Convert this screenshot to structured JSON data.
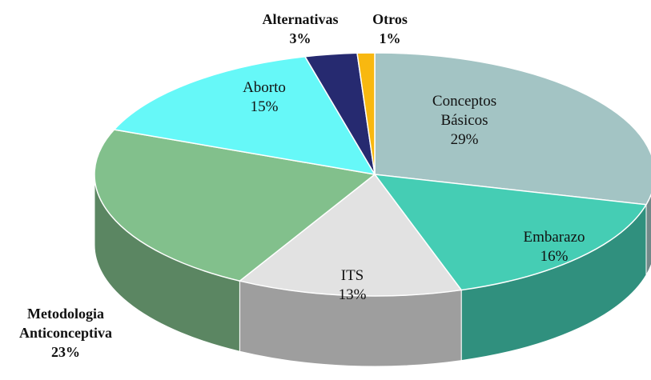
{
  "chart_data": {
    "type": "pie3d",
    "categories": [
      "Conceptos Básicos",
      "Embarazo",
      "ITS",
      "Metodologia Anticonceptiva",
      "Aborto",
      "Alternativas",
      "Otros"
    ],
    "values": [
      29,
      16,
      13,
      23,
      15,
      3,
      1
    ],
    "value_labels": [
      "29%",
      "16%",
      "13%",
      "23%",
      "15%",
      "3%",
      "1%"
    ],
    "colors": [
      "#a3c4c4",
      "#45cdb4",
      "#e2e2e2",
      "#82c08c",
      "#66f8f8",
      "#262a70",
      "#f8b810"
    ]
  }
}
